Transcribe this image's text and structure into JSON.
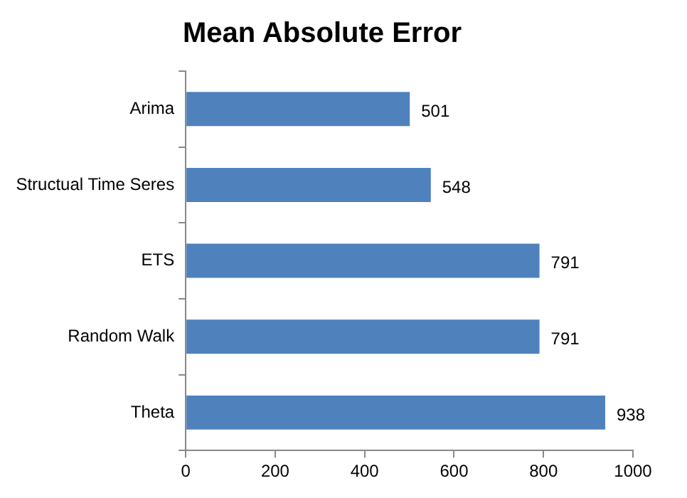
{
  "chart_data": {
    "type": "bar",
    "title": "Mean Absolute Error",
    "orientation": "horizontal",
    "categories": [
      "Arima",
      "Structual Time Seres",
      "ETS",
      "Random Walk",
      "Theta"
    ],
    "values": [
      501,
      548,
      791,
      791,
      938
    ],
    "color": "#4f81bd",
    "xlim": [
      0,
      1000
    ],
    "xticks": [
      0,
      200,
      400,
      600,
      800,
      1000
    ],
    "grid": false,
    "legend": false,
    "data_labels": true
  }
}
